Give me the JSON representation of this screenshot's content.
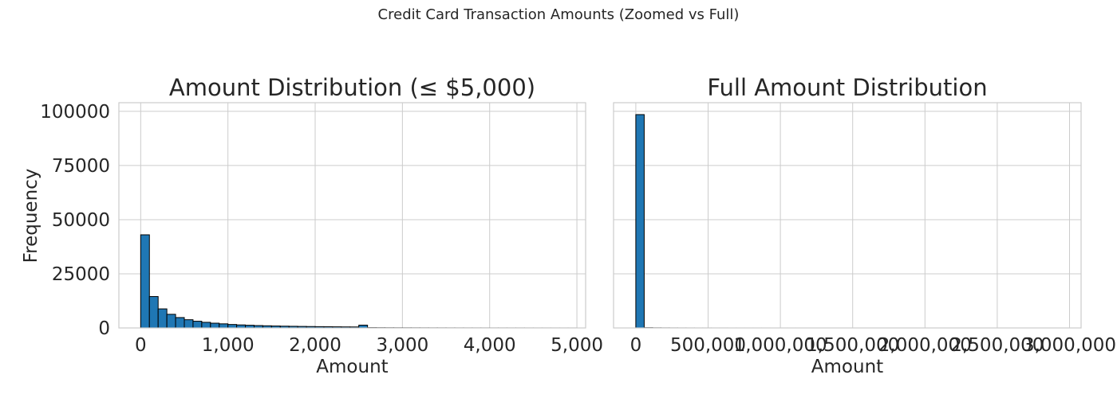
{
  "figure": {
    "suptitle": "Credit Card Transaction Amounts (Zoomed vs Full)"
  },
  "colors": {
    "bar": "#1f77b4",
    "bar_edge": "#000000",
    "grid": "#cccccc",
    "text": "#262626"
  },
  "chart_data": [
    {
      "type": "bar",
      "title": "Amount Distribution (≤ $5,000)",
      "xlabel": "Amount",
      "ylabel": "Frequency",
      "xlim": [
        -250,
        5100
      ],
      "ylim": [
        0,
        104000
      ],
      "xticks": [
        0,
        1000,
        2000,
        3000,
        4000,
        5000
      ],
      "xtick_labels": [
        "0",
        "1,000",
        "2,000",
        "3,000",
        "4,000",
        "5,000"
      ],
      "yticks": [
        0,
        25000,
        50000,
        75000,
        100000
      ],
      "ytick_labels": [
        "0",
        "25000",
        "50000",
        "75000",
        "100000"
      ],
      "grid": true,
      "bin_width": 100,
      "bin_starts": [
        0,
        100,
        200,
        300,
        400,
        500,
        600,
        700,
        800,
        900,
        1000,
        1100,
        1200,
        1300,
        1400,
        1500,
        1600,
        1700,
        1800,
        1900,
        2000,
        2100,
        2200,
        2300,
        2400,
        2500,
        2600,
        2700,
        2800,
        2900,
        3000,
        3100,
        3200,
        3300,
        3400,
        3500,
        3600,
        3700,
        3800,
        3900,
        4000,
        4100,
        4200,
        4300,
        4400,
        4500,
        4600,
        4700,
        4800,
        4900
      ],
      "values": [
        43000,
        14500,
        8800,
        6300,
        4800,
        3800,
        3100,
        2600,
        2200,
        1900,
        1600,
        1400,
        1250,
        1100,
        1000,
        900,
        820,
        760,
        700,
        650,
        600,
        560,
        520,
        480,
        460,
        1300,
        150,
        120,
        100,
        90,
        80,
        70,
        60,
        55,
        50,
        45,
        40,
        38,
        35,
        32,
        30,
        28,
        26,
        24,
        22,
        20,
        18,
        16,
        15,
        14
      ]
    },
    {
      "type": "bar",
      "title": "Full Amount Distribution",
      "xlabel": "Amount",
      "ylabel": "",
      "xlim": [
        -154000,
        3080000
      ],
      "ylim": [
        0,
        104000
      ],
      "xticks": [
        0,
        500000,
        1000000,
        1500000,
        2000000,
        2500000,
        3000000
      ],
      "xtick_labels": [
        "0",
        "500,000",
        "1,000,000",
        "1,500,000",
        "2,000,000",
        "2,500,000",
        "3,000,000"
      ],
      "yticks": [
        0,
        25000,
        50000,
        75000,
        100000
      ],
      "grid": true,
      "bin_width": 58000,
      "bin_starts": [
        0,
        58000,
        116000,
        174000,
        232000,
        290000,
        348000,
        406000,
        464000,
        522000,
        580000,
        638000,
        696000,
        754000,
        812000,
        870000,
        928000,
        986000,
        1044000,
        1102000,
        1160000,
        1218000,
        1276000,
        1334000,
        1392000,
        1450000,
        1508000,
        1566000,
        1624000,
        1682000,
        1740000,
        1798000,
        1856000,
        1914000,
        1972000,
        2030000,
        2088000,
        2146000,
        2204000,
        2262000,
        2320000,
        2378000,
        2436000,
        2494000,
        2552000,
        2610000,
        2668000,
        2726000,
        2784000,
        2842000
      ],
      "values": [
        98500,
        120,
        60,
        40,
        30,
        20,
        15,
        12,
        10,
        8,
        6,
        5,
        4,
        4,
        3,
        3,
        2,
        2,
        2,
        2,
        1,
        1,
        1,
        1,
        1,
        1,
        1,
        1,
        1,
        1,
        1,
        1,
        1,
        1,
        1,
        1,
        1,
        1,
        1,
        1,
        1,
        1,
        1,
        1,
        1,
        1,
        1,
        1,
        1,
        1
      ]
    }
  ]
}
